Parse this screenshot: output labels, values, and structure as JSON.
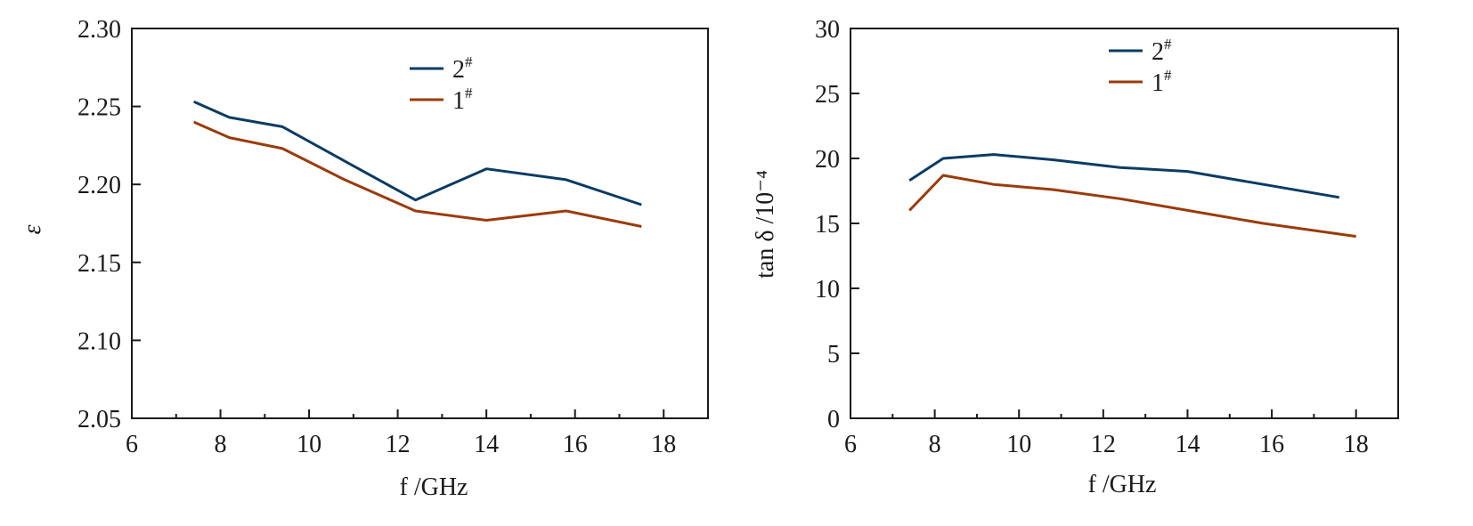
{
  "chart_data": [
    {
      "type": "line",
      "xlabel": "f /GHz",
      "ylabel": "ε",
      "xlim": [
        6,
        19
      ],
      "ylim": [
        2.05,
        2.3
      ],
      "xticks": [
        6,
        8,
        10,
        12,
        14,
        16,
        18
      ],
      "yticks": [
        2.05,
        2.1,
        2.15,
        2.2,
        2.25,
        2.3
      ],
      "ytick_labels": [
        "2.05",
        "2.10",
        "2.15",
        "2.20",
        "2.25",
        "2.30"
      ],
      "legend_position": "top-center",
      "series": [
        {
          "name": "2#",
          "color": "#0b3b63",
          "x": [
            7.4,
            8.2,
            9.4,
            10.8,
            12.4,
            14.0,
            15.8,
            17.5
          ],
          "y": [
            2.253,
            2.243,
            2.237,
            2.215,
            2.19,
            2.21,
            2.203,
            2.187
          ]
        },
        {
          "name": "1#",
          "color": "#9a3b0a",
          "x": [
            7.4,
            8.2,
            9.4,
            10.8,
            12.4,
            14.0,
            15.8,
            17.5
          ],
          "y": [
            2.24,
            2.23,
            2.223,
            2.203,
            2.183,
            2.177,
            2.183,
            2.173
          ]
        }
      ]
    },
    {
      "type": "line",
      "xlabel": "f /GHz",
      "ylabel": "tan δ /10⁻⁴",
      "xlim": [
        6,
        19
      ],
      "ylim": [
        0,
        30
      ],
      "xticks": [
        6,
        8,
        10,
        12,
        14,
        16,
        18
      ],
      "yticks": [
        0,
        5,
        10,
        15,
        20,
        25,
        30
      ],
      "ytick_labels": [
        "0",
        "5",
        "10",
        "15",
        "20",
        "25",
        "30"
      ],
      "legend_position": "top-center",
      "series": [
        {
          "name": "2#",
          "color": "#0b3b63",
          "x": [
            7.4,
            8.2,
            9.4,
            10.8,
            12.4,
            14.0,
            15.8,
            17.6
          ],
          "y": [
            18.3,
            20.0,
            20.3,
            19.9,
            19.3,
            19.0,
            18.0,
            17.0
          ]
        },
        {
          "name": "1#",
          "color": "#9a3b0a",
          "x": [
            7.4,
            8.2,
            9.4,
            10.8,
            12.4,
            14.0,
            15.8,
            18.0
          ],
          "y": [
            16.0,
            18.7,
            18.0,
            17.6,
            16.9,
            16.0,
            15.0,
            14.0
          ]
        }
      ]
    }
  ]
}
